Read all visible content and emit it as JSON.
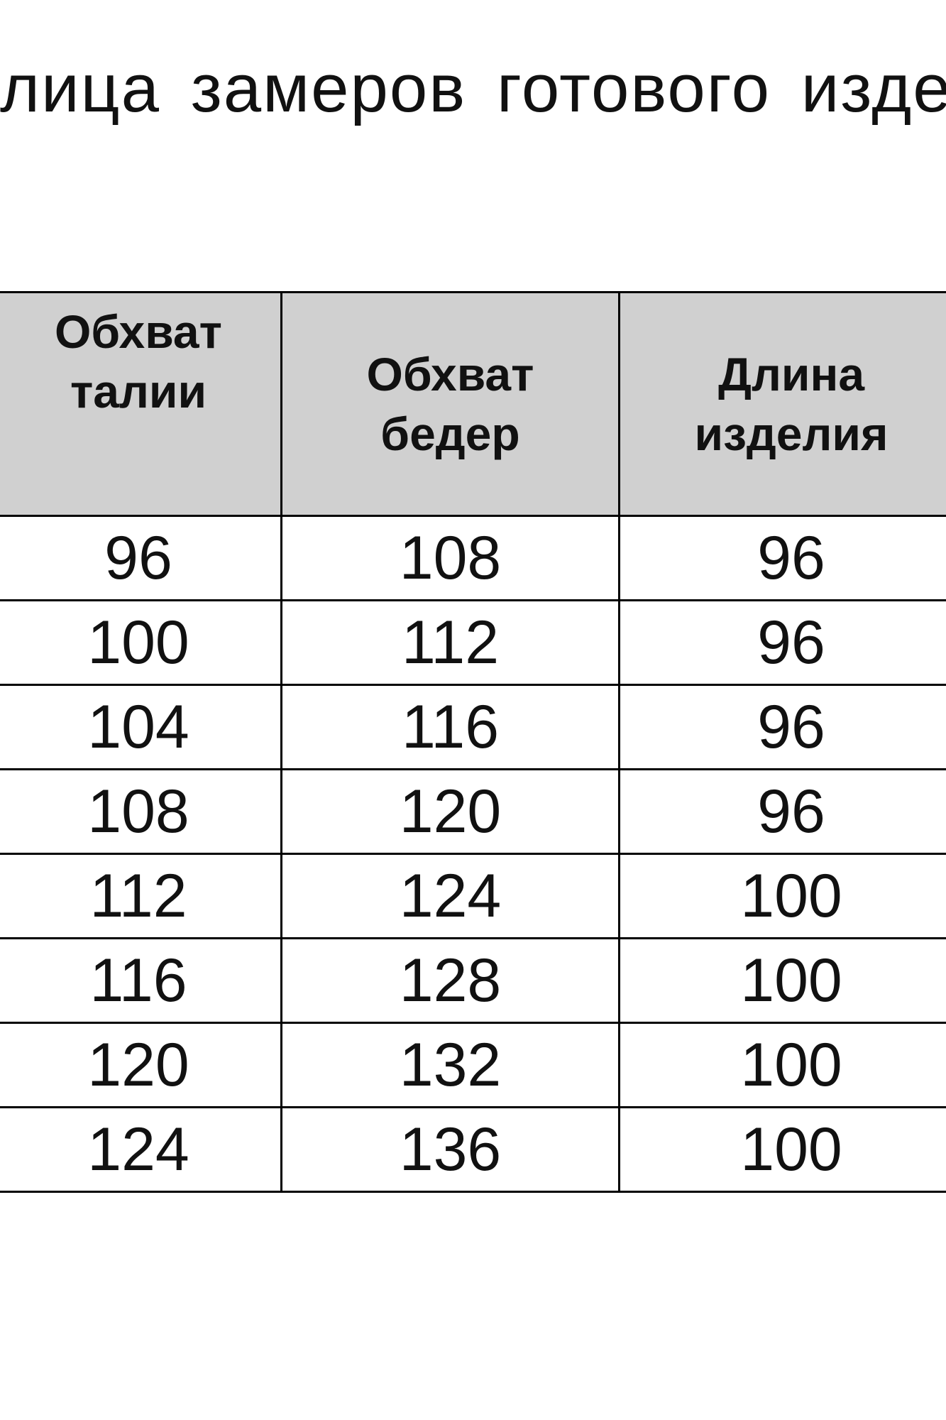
{
  "title": "лица замеров готового изде",
  "table": {
    "headers": [
      "Обхват талии",
      "Обхват бедер",
      "Длина изделия"
    ],
    "header_lines": [
      [
        "Обхват",
        "талии"
      ],
      [
        "Обхват",
        "бедер"
      ],
      [
        "Длина",
        "изделия"
      ]
    ],
    "rows": [
      [
        "96",
        "108",
        "96"
      ],
      [
        "100",
        "112",
        "96"
      ],
      [
        "104",
        "116",
        "96"
      ],
      [
        "108",
        "120",
        "96"
      ],
      [
        "112",
        "124",
        "100"
      ],
      [
        "116",
        "128",
        "100"
      ],
      [
        "120",
        "132",
        "100"
      ],
      [
        "124",
        "136",
        "100"
      ]
    ],
    "header_bg": "#d0d0d0"
  }
}
